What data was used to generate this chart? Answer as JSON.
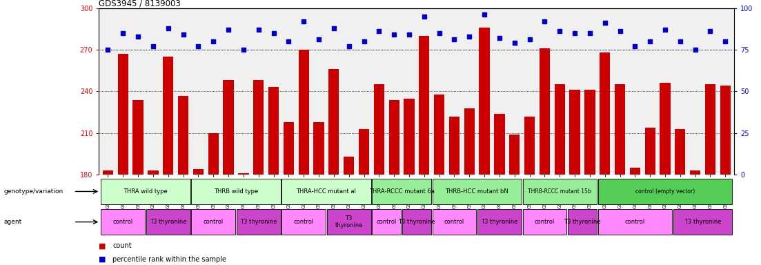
{
  "title": "GDS3945 / 8139003",
  "samples": [
    "GSM721654",
    "GSM721655",
    "GSM721656",
    "GSM721657",
    "GSM721658",
    "GSM721659",
    "GSM721660",
    "GSM721661",
    "GSM721662",
    "GSM721663",
    "GSM721664",
    "GSM721665",
    "GSM721666",
    "GSM721667",
    "GSM721668",
    "GSM721669",
    "GSM721670",
    "GSM721671",
    "GSM721672",
    "GSM721673",
    "GSM721674",
    "GSM721675",
    "GSM721676",
    "GSM721677",
    "GSM721678",
    "GSM721679",
    "GSM721680",
    "GSM721681",
    "GSM721682",
    "GSM721683",
    "GSM721684",
    "GSM721685",
    "GSM721686",
    "GSM721687",
    "GSM721688",
    "GSM721689",
    "GSM721690",
    "GSM721691",
    "GSM721692",
    "GSM721693",
    "GSM721694",
    "GSM721695"
  ],
  "counts": [
    183,
    267,
    234,
    183,
    265,
    237,
    184,
    210,
    248,
    181,
    248,
    243,
    218,
    270,
    218,
    256,
    193,
    213,
    245,
    234,
    235,
    280,
    238,
    222,
    228,
    286,
    224,
    209,
    222,
    271,
    245,
    241,
    241,
    268,
    245,
    185,
    214,
    246,
    213,
    183,
    245,
    244
  ],
  "percentile_ranks": [
    75,
    85,
    83,
    77,
    88,
    84,
    77,
    80,
    87,
    75,
    87,
    85,
    80,
    92,
    81,
    88,
    77,
    80,
    86,
    84,
    84,
    95,
    85,
    81,
    83,
    96,
    82,
    79,
    81,
    92,
    86,
    85,
    85,
    91,
    86,
    77,
    80,
    87,
    80,
    75,
    86,
    80
  ],
  "genotype_groups": [
    {
      "label": "THRA wild type",
      "start": 0,
      "end": 6,
      "color": "#ccffcc"
    },
    {
      "label": "THRB wild type",
      "start": 6,
      "end": 12,
      "color": "#ccffcc"
    },
    {
      "label": "THRA-HCC mutant al",
      "start": 12,
      "end": 18,
      "color": "#ccffcc"
    },
    {
      "label": "THRA-RCCC mutant 6a",
      "start": 18,
      "end": 22,
      "color": "#99ee99"
    },
    {
      "label": "THRB-HCC mutant bN",
      "start": 22,
      "end": 28,
      "color": "#99ee99"
    },
    {
      "label": "THRB-RCCC mutant 15b",
      "start": 28,
      "end": 33,
      "color": "#99ee99"
    },
    {
      "label": "control (empty vector)",
      "start": 33,
      "end": 42,
      "color": "#55cc55"
    }
  ],
  "agent_groups": [
    {
      "label": "control",
      "start": 0,
      "end": 3,
      "color": "#ff88ff"
    },
    {
      "label": "T3 thyronine",
      "start": 3,
      "end": 6,
      "color": "#cc44cc"
    },
    {
      "label": "control",
      "start": 6,
      "end": 9,
      "color": "#ff88ff"
    },
    {
      "label": "T3 thyronine",
      "start": 9,
      "end": 12,
      "color": "#cc44cc"
    },
    {
      "label": "control",
      "start": 12,
      "end": 15,
      "color": "#ff88ff"
    },
    {
      "label": "T3\nthyronine",
      "start": 15,
      "end": 18,
      "color": "#cc44cc"
    },
    {
      "label": "control",
      "start": 18,
      "end": 20,
      "color": "#ff88ff"
    },
    {
      "label": "T3 thyronine",
      "start": 20,
      "end": 22,
      "color": "#cc44cc"
    },
    {
      "label": "control",
      "start": 22,
      "end": 25,
      "color": "#ff88ff"
    },
    {
      "label": "T3 thyronine",
      "start": 25,
      "end": 28,
      "color": "#cc44cc"
    },
    {
      "label": "control",
      "start": 28,
      "end": 31,
      "color": "#ff88ff"
    },
    {
      "label": "T3 thyronine",
      "start": 31,
      "end": 33,
      "color": "#cc44cc"
    },
    {
      "label": "control",
      "start": 33,
      "end": 38,
      "color": "#ff88ff"
    },
    {
      "label": "T3 thyronine",
      "start": 38,
      "end": 42,
      "color": "#cc44cc"
    }
  ],
  "bar_color": "#cc0000",
  "dot_color": "#0000cc",
  "ylim_left": [
    180,
    300
  ],
  "ylim_right": [
    0,
    100
  ],
  "yticks_left": [
    180,
    210,
    240,
    270,
    300
  ],
  "yticks_right": [
    0,
    25,
    50,
    75,
    100
  ],
  "grid_values": [
    210,
    240,
    270
  ],
  "bg_color": "#ffffff",
  "plot_bg": "#f0f0f0"
}
